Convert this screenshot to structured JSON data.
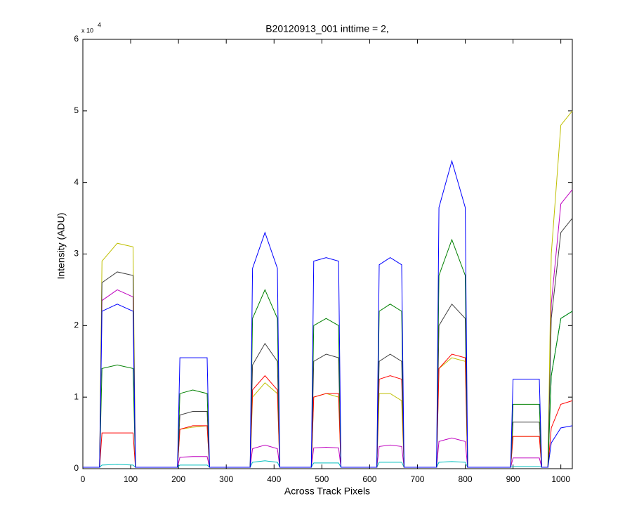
{
  "chart_data": {
    "type": "line",
    "title": "B20120913_001 inttime = 2,",
    "x_label": "Across Track Pixels",
    "y_label": "Intensity (ADU)",
    "y_multiplier": "x 10",
    "y_exponent": "4",
    "xlim": [
      0,
      1024
    ],
    "ylim": [
      0,
      60000
    ],
    "xticks": [
      0,
      100,
      200,
      300,
      400,
      500,
      600,
      700,
      800,
      900,
      1000
    ],
    "yticks": [
      {
        "value": 0,
        "label": "0"
      },
      {
        "value": 10000,
        "label": "1"
      },
      {
        "value": 20000,
        "label": "2"
      },
      {
        "value": 30000,
        "label": "3"
      },
      {
        "value": 40000,
        "label": "4"
      },
      {
        "value": 50000,
        "label": "5"
      },
      {
        "value": 60000,
        "label": "6"
      }
    ],
    "grid": false,
    "x": [
      0,
      35,
      40,
      72,
      105,
      110,
      198,
      203,
      230,
      260,
      265,
      350,
      355,
      381,
      407,
      412,
      478,
      483,
      509,
      535,
      540,
      615,
      620,
      643,
      667,
      672,
      740,
      745,
      772,
      800,
      805,
      895,
      900,
      928,
      955,
      960,
      973,
      980,
      1000,
      1024
    ],
    "series": [
      {
        "color": "#00bfbf",
        "values": [
          200,
          200,
          500,
          600,
          500,
          200,
          200,
          500,
          500,
          500,
          200,
          200,
          900,
          1100,
          900,
          200,
          200,
          800,
          800,
          800,
          200,
          200,
          900,
          900,
          900,
          200,
          200,
          900,
          1000,
          900,
          200,
          200,
          300,
          300,
          300,
          200,
          200,
          13000,
          21000,
          22000
        ]
      },
      {
        "color": "#bf00bf",
        "values": [
          200,
          200,
          23500,
          25000,
          24000,
          200,
          200,
          1600,
          1700,
          1700,
          200,
          200,
          2800,
          3300,
          2800,
          200,
          200,
          2900,
          3000,
          2900,
          200,
          200,
          3100,
          3300,
          3100,
          200,
          200,
          3800,
          4300,
          3800,
          200,
          200,
          1500,
          1500,
          1500,
          200,
          200,
          23000,
          37000,
          39000
        ]
      },
      {
        "color": "#bfbf00",
        "values": [
          200,
          200,
          29000,
          31500,
          31000,
          200,
          200,
          5500,
          5800,
          6000,
          200,
          200,
          10000,
          12000,
          10500,
          200,
          200,
          10000,
          10500,
          10000,
          200,
          200,
          10500,
          10500,
          9500,
          200,
          200,
          14000,
          15500,
          15000,
          200,
          200,
          4500,
          4500,
          4500,
          200,
          200,
          30000,
          48000,
          50000
        ]
      },
      {
        "color": "#ff0000",
        "values": [
          200,
          200,
          5000,
          5000,
          5000,
          200,
          200,
          5500,
          6000,
          6000,
          200,
          200,
          11000,
          13000,
          11000,
          200,
          200,
          10000,
          10500,
          10500,
          200,
          200,
          12500,
          13000,
          12500,
          200,
          200,
          14000,
          16000,
          15500,
          200,
          200,
          4500,
          4500,
          4500,
          200,
          200,
          5700,
          9000,
          9500
        ]
      },
      {
        "color": "#404040",
        "values": [
          200,
          200,
          26000,
          27500,
          27000,
          200,
          200,
          7500,
          8000,
          8000,
          200,
          200,
          14500,
          17500,
          15000,
          200,
          200,
          15000,
          16000,
          15500,
          200,
          200,
          15000,
          16000,
          15000,
          200,
          200,
          20000,
          23000,
          21000,
          200,
          200,
          6500,
          6500,
          6500,
          200,
          200,
          21000,
          33000,
          35000
        ]
      },
      {
        "color": "#008000",
        "values": [
          200,
          200,
          14000,
          14500,
          14000,
          200,
          200,
          10500,
          11000,
          10500,
          200,
          200,
          21000,
          25000,
          21000,
          200,
          200,
          20000,
          21000,
          20000,
          200,
          200,
          22000,
          23000,
          22000,
          200,
          200,
          27000,
          32000,
          27000,
          200,
          200,
          9000,
          9000,
          9000,
          200,
          200,
          13000,
          21000,
          22000
        ]
      },
      {
        "color": "#0000ff",
        "values": [
          200,
          200,
          22000,
          23000,
          22000,
          200,
          200,
          15500,
          15500,
          15500,
          200,
          200,
          28000,
          33000,
          28000,
          200,
          200,
          29000,
          29500,
          29000,
          200,
          200,
          28500,
          29500,
          28500,
          200,
          200,
          36500,
          43000,
          36500,
          200,
          200,
          12500,
          12500,
          12500,
          200,
          200,
          3600,
          5700,
          6000
        ]
      }
    ]
  }
}
